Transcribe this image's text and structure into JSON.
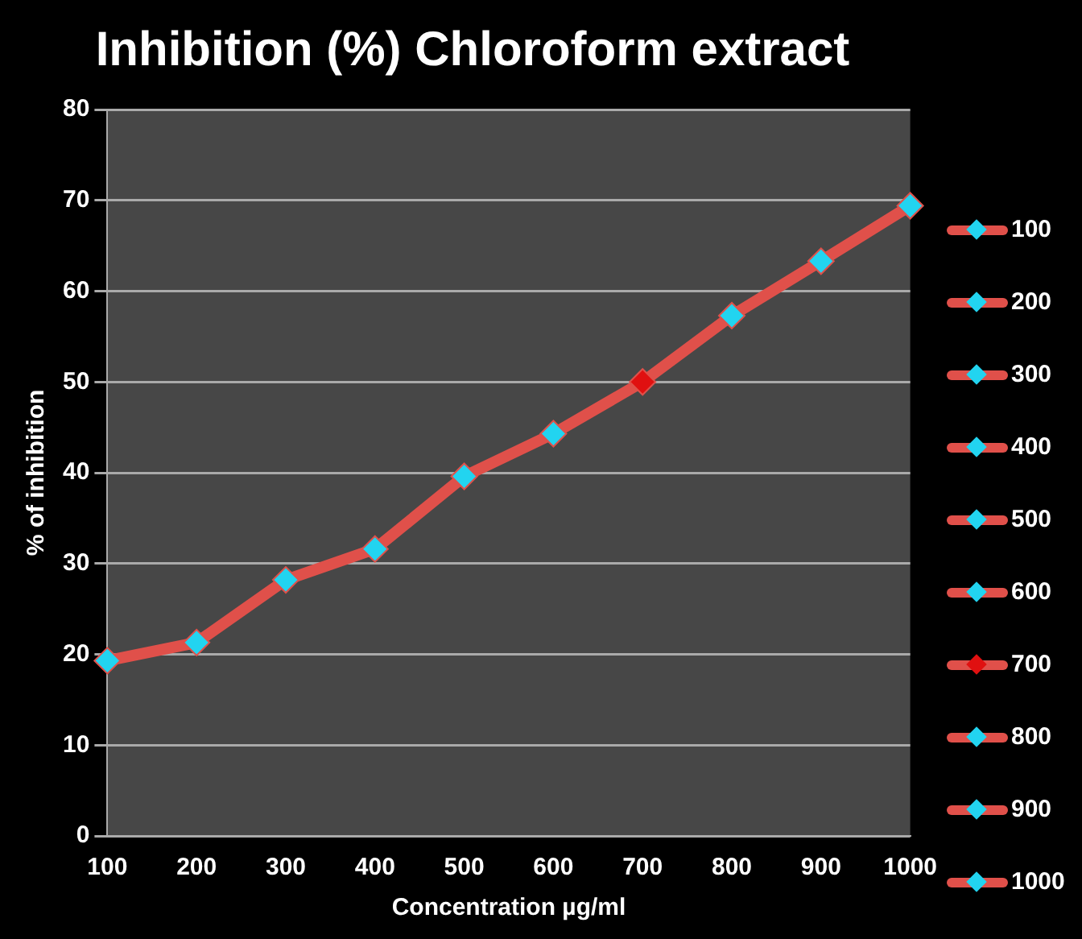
{
  "chart_data": {
    "type": "line",
    "title": "Inhibition (%) Chloroform extract",
    "xlabel": "Concentration µg/ml",
    "ylabel": "% of inhibition",
    "categories": [
      "100",
      "200",
      "300",
      "400",
      "500",
      "600",
      "700",
      "800",
      "900",
      "1000"
    ],
    "series": [
      {
        "color": "#e0504a",
        "colors": [
          "#22d4f0",
          "#22d4f0",
          "#22d4f0",
          "#22d4f0",
          "#22d4f0",
          "#22d4f0",
          "#e01010",
          "#22d4f0",
          "#22d4f0",
          "#22d4f0"
        ],
        "values": [
          19.3,
          21.3,
          28.2,
          31.6,
          39.6,
          44.3,
          50.0,
          57.3,
          63.3,
          69.4
        ]
      }
    ],
    "ylim": [
      0,
      80
    ],
    "yticks": [
      0,
      10,
      20,
      30,
      40,
      50,
      60,
      70,
      80
    ],
    "grid": "y",
    "marker": "diamond",
    "line_style": "solid"
  }
}
